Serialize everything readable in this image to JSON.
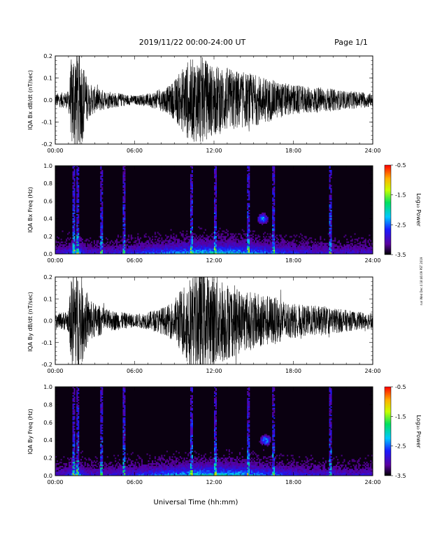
{
  "header": {
    "title": "2019/11/22  00:00-24:00 UT",
    "page": "Page 1/1"
  },
  "footer": {
    "xlabel": "Universal Time (hh:mm)"
  },
  "side_note": "run Wed Dec 4 18:46:09 PST 2019",
  "colors": {
    "trace": "#000000",
    "background": "#ffffff",
    "spectrogram_background": "#0a0010"
  },
  "chart_data": [
    {
      "type": "line",
      "ylabel": "IQA Bx dB/dt (nT/sec)",
      "xlim_hours": [
        0,
        24
      ],
      "ylim": [
        -0.2,
        0.2
      ],
      "yticks": [
        "0.2",
        "0.1",
        "0.0",
        "-0.1",
        "-0.2"
      ],
      "xticks": [
        "00:00",
        "06:00",
        "12:00",
        "18:00",
        "24:00"
      ],
      "envelope": {
        "hours": [
          0,
          1,
          1.3,
          1.8,
          2.5,
          3,
          4,
          5,
          6,
          7,
          8,
          8.5,
          9,
          10,
          11,
          12,
          13,
          14,
          15,
          16,
          17,
          18,
          19,
          20,
          21,
          22,
          23,
          24
        ],
        "amplitude": [
          0.03,
          0.04,
          0.25,
          0.25,
          0.08,
          0.06,
          0.04,
          0.03,
          0.02,
          0.03,
          0.05,
          0.06,
          0.09,
          0.18,
          0.2,
          0.16,
          0.15,
          0.13,
          0.12,
          0.1,
          0.08,
          0.07,
          0.06,
          0.06,
          0.05,
          0.04,
          0.04,
          0.03
        ]
      }
    },
    {
      "type": "heatmap",
      "ylabel": "IQA Bx Freq (Hz)",
      "xlim_hours": [
        0,
        24
      ],
      "ylim": [
        0,
        1.0
      ],
      "yticks": [
        "1.0",
        "0.8",
        "0.6",
        "0.4",
        "0.2",
        "0.0"
      ],
      "xticks": [
        "00:00",
        "06:00",
        "12:00",
        "18:00",
        "24:00"
      ],
      "colorbar": {
        "label": "Log₁₀ Power",
        "range": [
          -3.5,
          -0.5
        ],
        "ticks": [
          "-0.5",
          "-1.5",
          "-2.5",
          "-3.5"
        ]
      },
      "features": {
        "vertical_burst_hours": [
          1.4,
          1.7,
          3.5,
          5.2,
          10.3,
          12.1,
          14.6,
          16.5,
          20.8
        ],
        "low_freq_band_hz": 0.1,
        "blob": {
          "hour": 15.7,
          "freq_hz": 0.4
        }
      }
    },
    {
      "type": "line",
      "ylabel": "IQA By dB/dt (nT/sec)",
      "xlim_hours": [
        0,
        24
      ],
      "ylim": [
        -0.2,
        0.2
      ],
      "yticks": [
        "0.2",
        "0.1",
        "0.0",
        "-0.1",
        "-0.2"
      ],
      "xticks": [
        "00:00",
        "06:00",
        "12:00",
        "18:00",
        "24:00"
      ],
      "envelope": {
        "hours": [
          0,
          1,
          1.3,
          1.8,
          2.5,
          3,
          4,
          5,
          6,
          7,
          8,
          8.5,
          9,
          10,
          11,
          12,
          13,
          14,
          15,
          16,
          17,
          18,
          19,
          20,
          21,
          22,
          23,
          24
        ],
        "amplitude": [
          0.03,
          0.05,
          0.25,
          0.25,
          0.1,
          0.08,
          0.05,
          0.04,
          0.03,
          0.04,
          0.06,
          0.07,
          0.1,
          0.2,
          0.25,
          0.22,
          0.18,
          0.15,
          0.13,
          0.12,
          0.1,
          0.08,
          0.07,
          0.07,
          0.06,
          0.05,
          0.04,
          0.04
        ]
      }
    },
    {
      "type": "heatmap",
      "ylabel": "IQA By Freq (Hz)",
      "xlim_hours": [
        0,
        24
      ],
      "ylim": [
        0,
        1.0
      ],
      "yticks": [
        "1.0",
        "0.8",
        "0.6",
        "0.4",
        "0.2",
        "0.0"
      ],
      "xticks": [
        "00:00",
        "06:00",
        "12:00",
        "18:00",
        "24:00"
      ],
      "colorbar": {
        "label": "Log₁₀ Power",
        "range": [
          -3.5,
          -0.5
        ],
        "ticks": [
          "-0.5",
          "-1.5",
          "-2.5",
          "-3.5"
        ]
      },
      "features": {
        "vertical_burst_hours": [
          1.4,
          1.7,
          3.5,
          5.2,
          10.3,
          12.1,
          14.6,
          16.5,
          20.8
        ],
        "low_freq_band_hz": 0.1,
        "blob": {
          "hour": 15.9,
          "freq_hz": 0.4
        }
      }
    }
  ]
}
